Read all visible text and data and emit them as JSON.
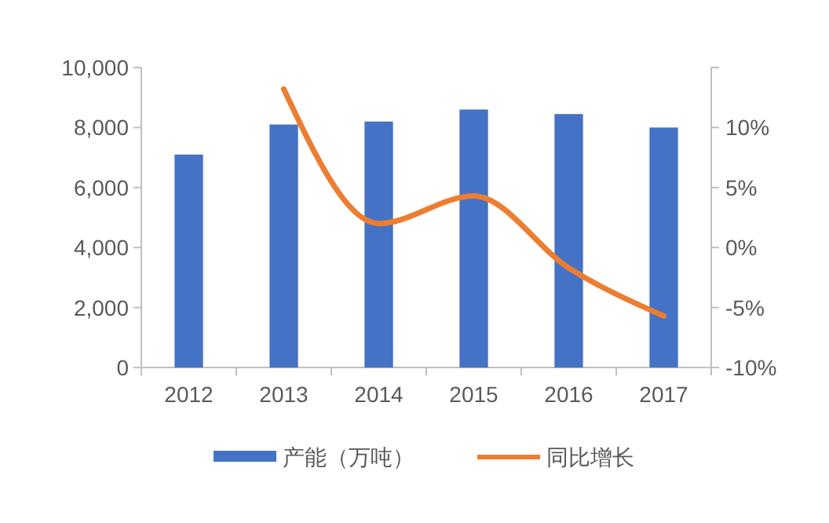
{
  "chart_data": {
    "type": "bar",
    "categories": [
      "2012",
      "2013",
      "2014",
      "2015",
      "2016",
      "2017"
    ],
    "series": [
      {
        "name": "产能（万吨）",
        "color": "#4472c4",
        "values": [
          7100,
          8100,
          8200,
          8600,
          8450,
          8000
        ]
      },
      {
        "name": "同比增长",
        "type": "line",
        "axis": "y2",
        "color": "#ed7d31",
        "values": [
          null,
          13.2,
          2,
          4.3,
          -1.7,
          -5.7
        ]
      }
    ],
    "ylim": [
      0,
      10000
    ],
    "yticks": [
      {
        "value": 0,
        "label": "0"
      },
      {
        "value": 2000,
        "label": "2,000"
      },
      {
        "value": 4000,
        "label": "4,000"
      },
      {
        "value": 6000,
        "label": "6,000"
      },
      {
        "value": 8000,
        "label": "8,000"
      },
      {
        "value": 10000,
        "label": "10,000"
      }
    ],
    "y2lim": [
      -10,
      15
    ],
    "y2ticks": [
      {
        "value": -10,
        "label": "-10%"
      },
      {
        "value": -5,
        "label": "-5%"
      },
      {
        "value": 0,
        "label": "0%"
      },
      {
        "value": 5,
        "label": "5%"
      },
      {
        "value": 10,
        "label": "10%"
      },
      {
        "value": 15,
        "label": null
      }
    ],
    "legend": "bottom",
    "grid": false,
    "marker": "none",
    "line_style": "solid"
  }
}
